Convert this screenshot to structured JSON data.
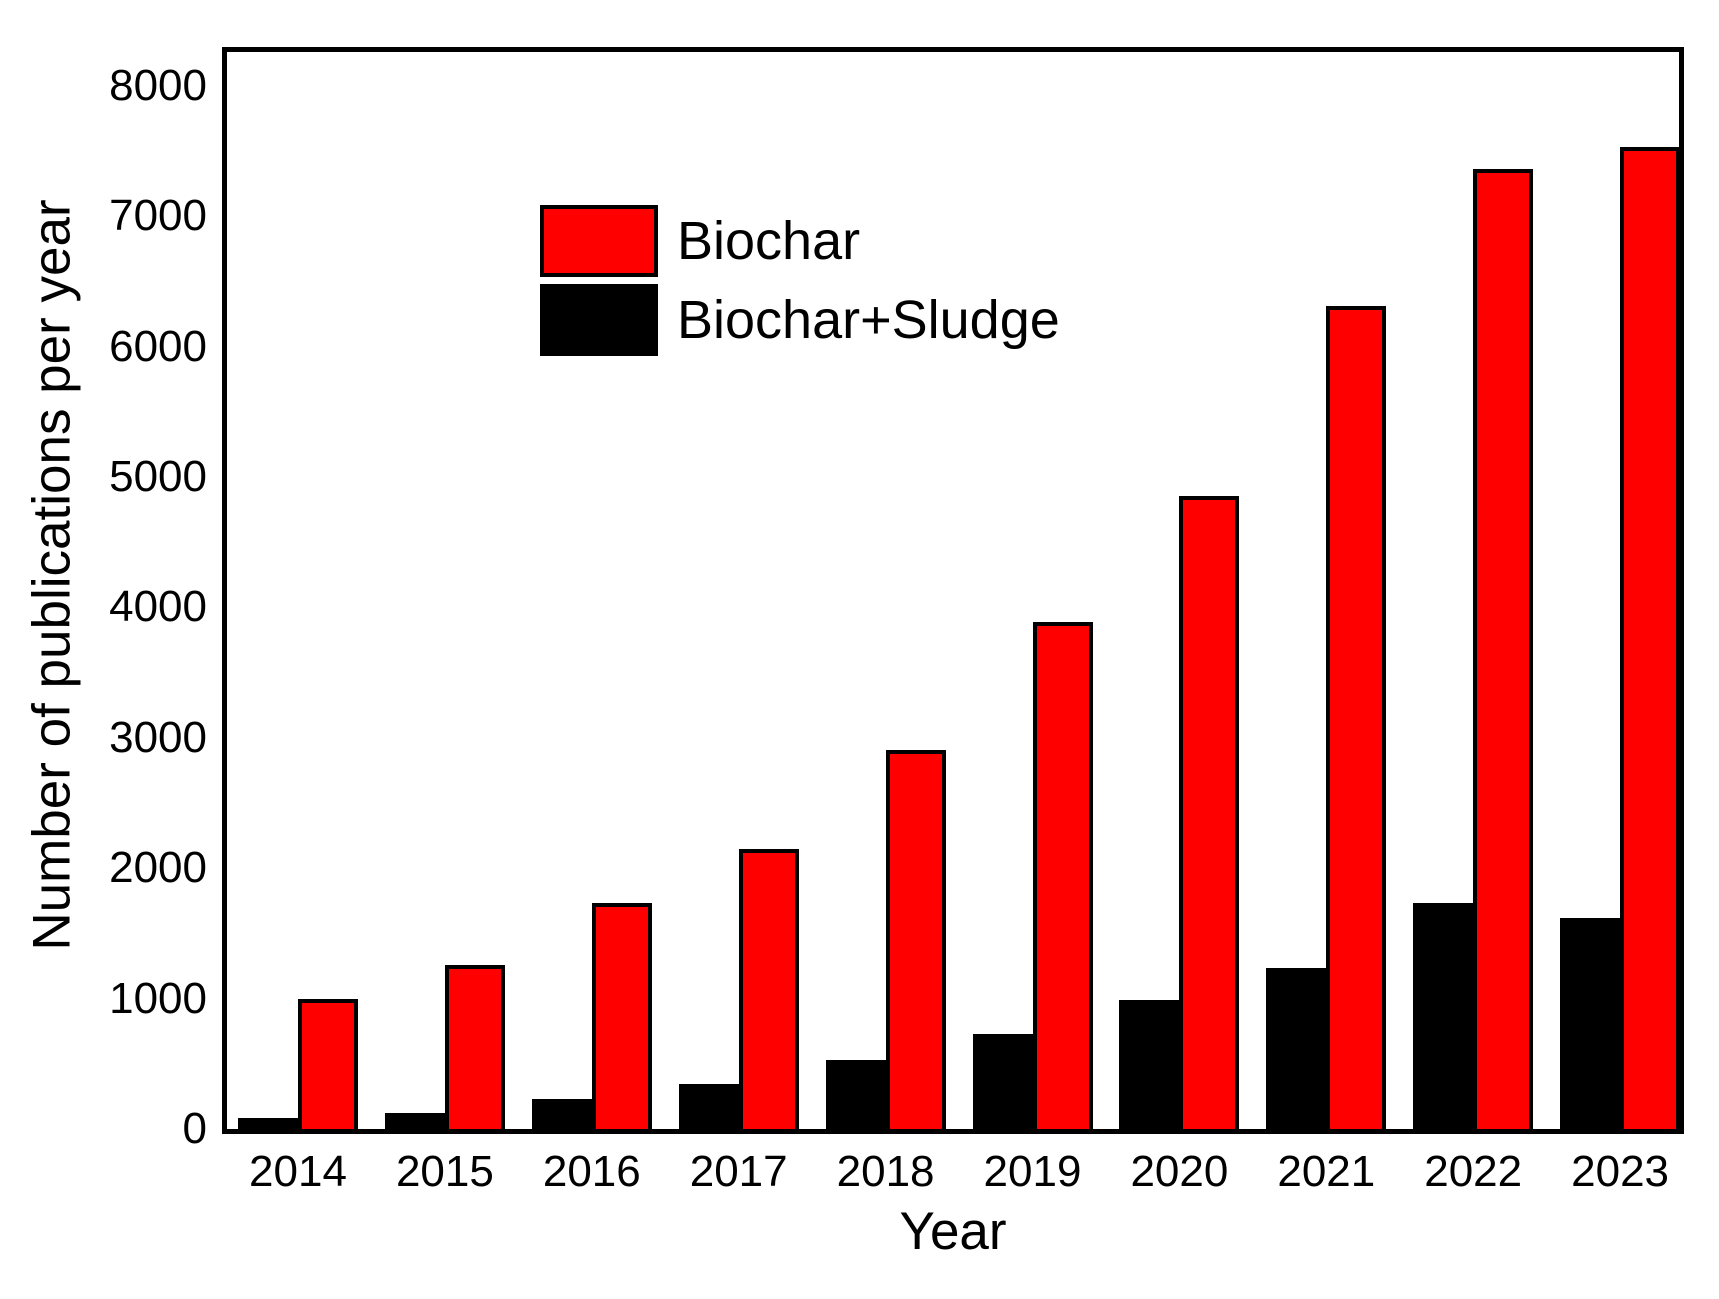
{
  "chart_data": {
    "type": "bar",
    "title": "",
    "xlabel": "Year",
    "ylabel": "Number of publications per year",
    "categories": [
      "2014",
      "2015",
      "2016",
      "2017",
      "2018",
      "2019",
      "2020",
      "2021",
      "2022",
      "2023"
    ],
    "series": [
      {
        "key": "biochar",
        "name": "Biochar",
        "color": "#ff0000",
        "values": [
          1000,
          1255,
          1730,
          2145,
          2905,
          3890,
          4855,
          6310,
          7365,
          7530
        ]
      },
      {
        "key": "biochar-sludge",
        "name": "Biochar+Sludge",
        "color": "#000000",
        "values": [
          85,
          120,
          230,
          345,
          530,
          730,
          990,
          1235,
          1730,
          1620
        ]
      }
    ],
    "yticks": [
      0,
      1000,
      2000,
      3000,
      4000,
      5000,
      6000,
      7000,
      8000
    ],
    "ylim": [
      0,
      8260
    ],
    "grid": false,
    "tick_marks": false,
    "legend_position": "upper-left-inside",
    "bar_outline_color": "#000000"
  },
  "colors": {
    "background": "#ffffff",
    "axis": "#000000",
    "text": "#000000"
  }
}
